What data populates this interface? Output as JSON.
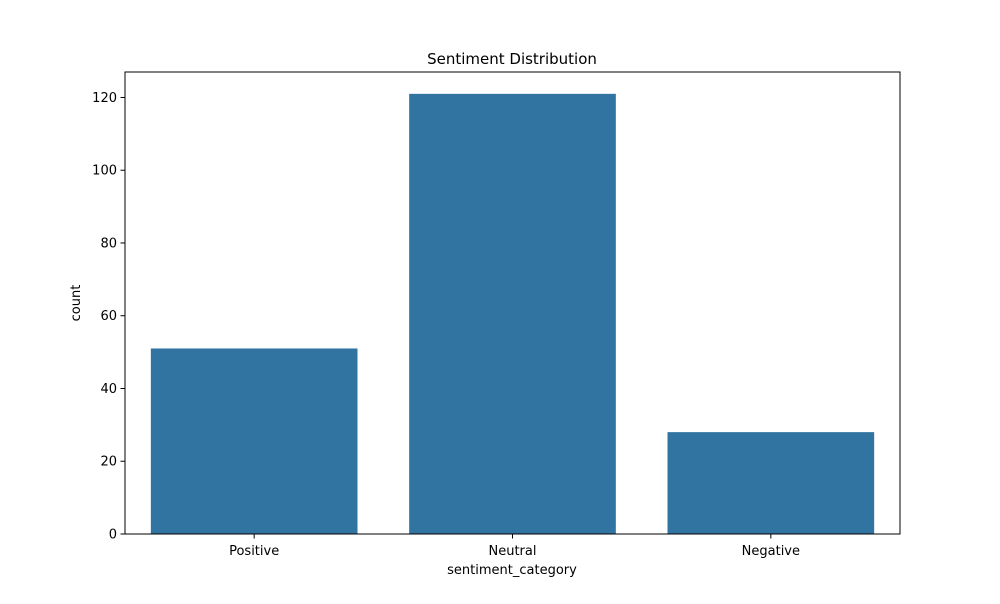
{
  "chart_data": {
    "type": "bar",
    "title": "Sentiment Distribution",
    "xlabel": "sentiment_category",
    "ylabel": "count",
    "categories": [
      "Positive",
      "Neutral",
      "Negative"
    ],
    "values": [
      51,
      121,
      28
    ],
    "ylim": [
      0,
      127
    ],
    "yticks": [
      0,
      20,
      40,
      60,
      80,
      100,
      120
    ],
    "grid": false,
    "bar_color": "#3274a1"
  }
}
